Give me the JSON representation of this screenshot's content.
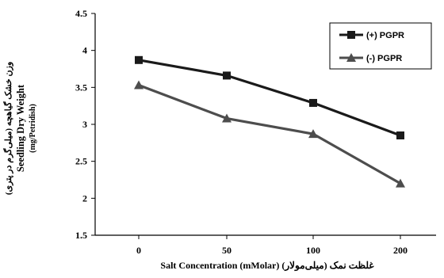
{
  "chart_data": {
    "type": "line",
    "categories": [
      "0",
      "50",
      "100",
      "200"
    ],
    "series": [
      {
        "name": "(+) PGPR",
        "values": [
          3.87,
          3.66,
          3.29,
          2.85
        ],
        "color": "#1a1a1a",
        "marker": "square"
      },
      {
        "name": "(-) PGPR",
        "values": [
          3.53,
          3.08,
          2.87,
          2.2
        ],
        "color": "#4d4d4d",
        "marker": "triangle"
      }
    ],
    "ylim": [
      1.5,
      4.5
    ],
    "yticks": [
      "1.5",
      "2",
      "2.5",
      "3",
      "3.5",
      "4",
      "4.5"
    ],
    "xlabel": "Salt Concentration  (mMolar) (میلی‌مولار) غلظت نمک",
    "ylabel": {
      "persian": "وزن خشک گیاهچه (میلی‌گرم در پتری)",
      "english": "Seedling Dry Weight",
      "unit": "(mg/Petridish)"
    },
    "legend_position": "top-right",
    "grid": false
  }
}
